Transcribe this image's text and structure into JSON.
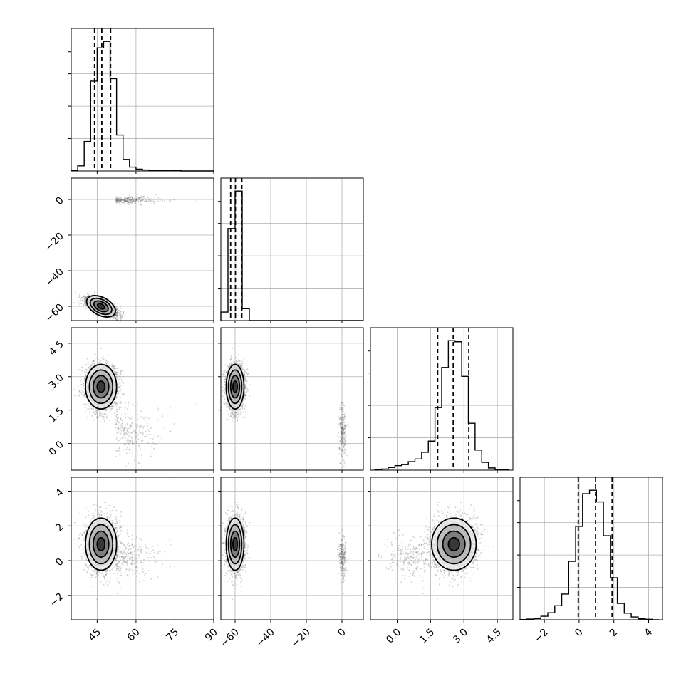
{
  "chart_data": {
    "type": "scatter",
    "title": "",
    "parameters": [
      "",
      "",
      "",
      ""
    ],
    "quantiles": [
      0.16,
      0.5,
      0.84
    ],
    "axis_ranges": [
      [
        35,
        90
      ],
      [
        -68,
        12
      ],
      [
        -1.2,
        5.2
      ],
      [
        -3.4,
        4.8
      ]
    ],
    "ticks": [
      {
        "values": [
          45,
          60,
          75,
          90
        ],
        "labels": [
          "45",
          "60",
          "75",
          "90"
        ]
      },
      {
        "values": [
          -60,
          -40,
          -20,
          0
        ],
        "labels": [
          "−60",
          "−40",
          "−20",
          "0"
        ]
      },
      {
        "values": [
          0.0,
          1.5,
          3.0,
          4.5
        ],
        "labels": [
          "0.0",
          "1.5",
          "3.0",
          "4.5"
        ]
      },
      {
        "values": [
          -2,
          0,
          2,
          4
        ],
        "labels": [
          "−2",
          "0",
          "2",
          "4"
        ]
      }
    ],
    "marginals": [
      {
        "bin_edges": [
          35.0,
          37.5,
          40.0,
          42.5,
          45.0,
          47.5,
          50.0,
          52.5,
          55.0,
          57.5,
          60.0,
          62.5,
          65.0,
          67.5,
          70.0,
          72.5,
          75.0,
          77.5,
          80.0,
          82.5,
          85.0,
          87.5,
          90.0
        ],
        "counts": [
          2,
          20,
          115,
          350,
          480,
          505,
          360,
          140,
          45,
          15,
          7,
          4,
          3,
          2,
          2,
          1,
          1,
          0,
          0,
          0,
          0,
          0
        ],
        "quantile_values": [
          44.0,
          46.8,
          50.2
        ]
      },
      {
        "bin_edges": [
          -68,
          -64,
          -60,
          -56,
          -52,
          -48,
          -44,
          -40,
          -36,
          -32,
          -28,
          -24,
          -20,
          -16,
          -12,
          -8,
          -4,
          0,
          4,
          8,
          12
        ],
        "counts": [
          25,
          270,
          380,
          35,
          0,
          0,
          0,
          0,
          0,
          0,
          0,
          0,
          0,
          0,
          0,
          0,
          0,
          0,
          0,
          0
        ],
        "quantile_values": [
          -62.5,
          -59.8,
          -56.2
        ]
      },
      {
        "bin_edges": [
          -1.0,
          -0.7,
          -0.4,
          -0.1,
          0.2,
          0.5,
          0.8,
          1.1,
          1.4,
          1.7,
          2.0,
          2.3,
          2.6,
          2.9,
          3.2,
          3.5,
          3.8,
          4.1,
          4.4,
          4.7,
          5.0
        ],
        "counts": [
          2,
          5,
          12,
          20,
          25,
          38,
          50,
          80,
          130,
          280,
          460,
          580,
          575,
          420,
          210,
          90,
          35,
          10,
          4,
          1
        ],
        "quantile_values": [
          1.82,
          2.52,
          3.22
        ]
      },
      {
        "bin_edges": [
          -3.4,
          -3.0,
          -2.6,
          -2.2,
          -1.8,
          -1.4,
          -1.0,
          -0.6,
          -0.2,
          0.2,
          0.6,
          1.0,
          1.4,
          1.8,
          2.2,
          2.6,
          3.0,
          3.4,
          3.8,
          4.2,
          4.6
        ],
        "counts": [
          1,
          3,
          5,
          15,
          30,
          60,
          110,
          250,
          400,
          540,
          555,
          505,
          360,
          180,
          70,
          28,
          12,
          4,
          2,
          0
        ],
        "quantile_values": [
          -0.05,
          0.95,
          1.9
        ]
      }
    ],
    "joint_clusters": {
      "main": {
        "center": [
          46.5,
          -60.0,
          2.55,
          0.95
        ],
        "sd": [
          3.0,
          2.5,
          0.5,
          0.75
        ],
        "corr_1_0": -0.7
      },
      "secondary": {
        "center": [
          60.0,
          0.0,
          0.6,
          0.2
        ],
        "sd": [
          9.0,
          1.0,
          0.55,
          0.6
        ],
        "corr_1_0": 0.0,
        "fraction": 0.1
      }
    }
  }
}
